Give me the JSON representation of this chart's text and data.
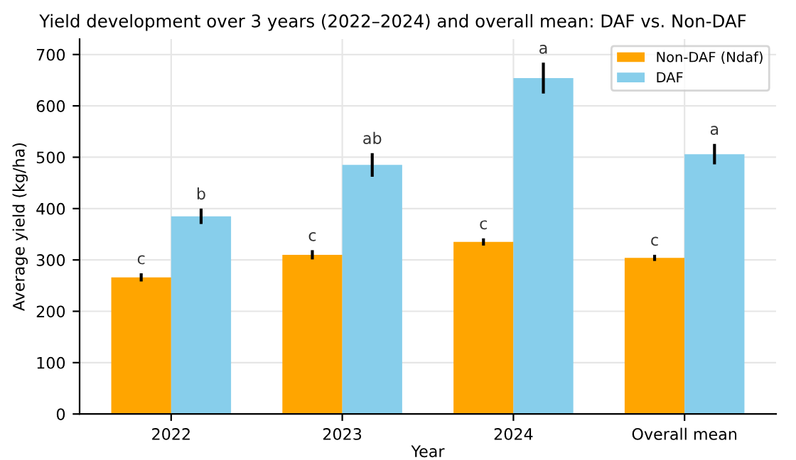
{
  "chart_data": {
    "type": "bar",
    "title": "Yield development over 3 years (2022–2024) and overall mean: DAF vs. Non-DAF",
    "xlabel": "Year",
    "ylabel": "Average yield (kg/ha)",
    "categories": [
      "2022",
      "2023",
      "2024",
      "Overall mean"
    ],
    "series": [
      {
        "name": "Non-DAF (Ndaf)",
        "color": "#ffa500",
        "values": [
          266,
          310,
          335,
          304
        ],
        "errors": [
          8,
          9,
          7,
          6
        ],
        "value_labels": [
          "c",
          "c",
          "c",
          "c"
        ]
      },
      {
        "name": "DAF",
        "color": "#87ceeb",
        "values": [
          385,
          485,
          654,
          506
        ],
        "errors": [
          15,
          23,
          30,
          20
        ],
        "value_labels": [
          "b",
          "ab",
          "a",
          "a"
        ]
      }
    ],
    "ylim": [
      0,
      730
    ],
    "yticks": [
      0,
      100,
      200,
      300,
      400,
      500,
      600,
      700
    ],
    "grid": true,
    "legend": "top right"
  }
}
